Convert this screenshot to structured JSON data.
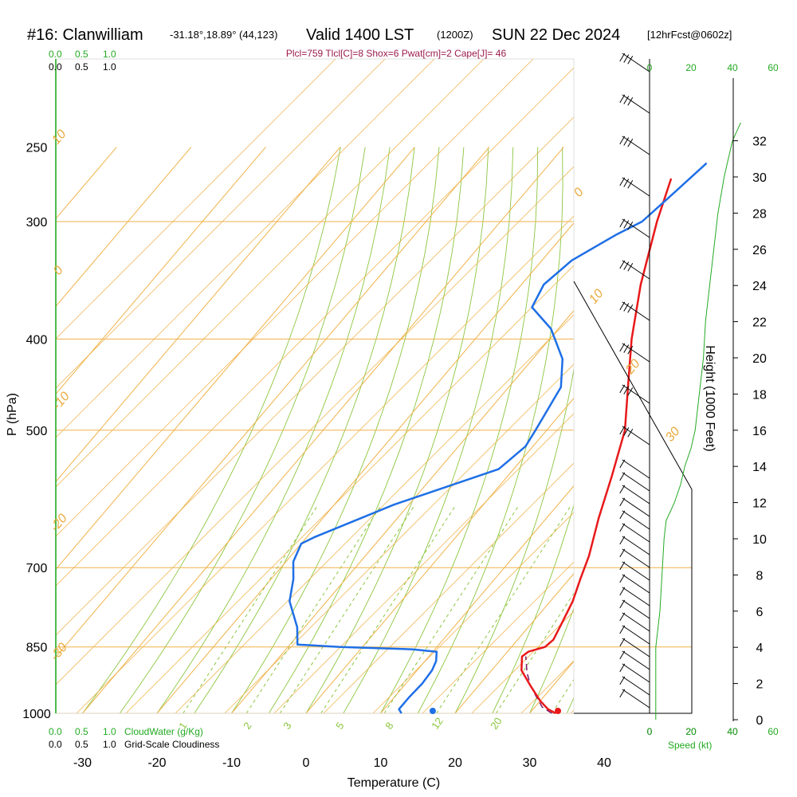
{
  "header": {
    "station": "#16: Clanwilliam",
    "coords": "-31.18°,18.89° (44,123)",
    "valid": "Valid 1400 LST",
    "utc": "(1200Z)",
    "date": "SUN 22 Dec 2024",
    "forecast": "[12hrFcst@0602z]",
    "indices": "Plcl=759 Tlcl[C]=8 Shox=6 Pwat[cm]=2 Cape[J]= 46"
  },
  "colors": {
    "temperature": "#e8191a",
    "dewpoint": "#1f6fe6",
    "isotherm": "#f0b24a",
    "dry_adiabat": "#8cc63f",
    "moist_adiabat": "#8cc63f",
    "mixing_ratio": "#8cc63f",
    "wind_speed": "#22aa22",
    "parcel": "#7a1a6a"
  },
  "scales": {
    "cloudwater_top": [
      "0.0",
      "0.5",
      "1.0"
    ],
    "cloudiness_top": [
      "0.0",
      "0.5",
      "1.0"
    ],
    "cloudwater_bottom": [
      "0.0",
      "0.5",
      "1.0"
    ],
    "cloudiness_bottom": [
      "0.0",
      "0.5",
      "1.0"
    ],
    "cloudwater_label": "CloudWater (g/Kg)",
    "cloudiness_label": "Grid-Scale Cloudiness"
  },
  "speed_axis": {
    "label": "Speed (kt)",
    "ticks_black": [
      "0",
      "20",
      "40"
    ],
    "ticks_green": [
      "0",
      "20",
      "40",
      "60"
    ],
    "ticks_top_green": [
      "0",
      "20",
      "40",
      "60"
    ]
  },
  "height_axis": {
    "label": "Height (1000 Feet)",
    "ticks": [
      "0",
      "2",
      "4",
      "6",
      "8",
      "10",
      "12",
      "14",
      "16",
      "18",
      "20",
      "22",
      "24",
      "26",
      "28",
      "30",
      "32"
    ]
  },
  "chart_data": {
    "type": "line",
    "xlabel": "Temperature (C)",
    "ylabel": "P (hPa)",
    "x_ticks": [
      -30,
      -20,
      -10,
      0,
      10,
      20,
      30,
      40
    ],
    "p_ticks": [
      1000,
      850,
      700,
      500,
      400,
      300,
      250
    ],
    "isotherm_labels": [
      "10",
      "0",
      "-10",
      "-20",
      "-30",
      "0",
      "10",
      "20",
      "30"
    ],
    "mixing_ratio_labels": [
      "1",
      "2",
      "3",
      "5",
      "8",
      "12",
      "20"
    ],
    "series": [
      {
        "name": "Temperature",
        "points": [
          [
            33.5,
            1000
          ],
          [
            32,
            990
          ],
          [
            30,
            970
          ],
          [
            27,
            935
          ],
          [
            24,
            900
          ],
          [
            22.5,
            870
          ],
          [
            22.8,
            860
          ],
          [
            24.5,
            850
          ],
          [
            24.8,
            835
          ],
          [
            24,
            800
          ],
          [
            23,
            760
          ],
          [
            21.5,
            720
          ],
          [
            20,
            680
          ],
          [
            17,
            620
          ],
          [
            14,
            560
          ],
          [
            10.5,
            500
          ],
          [
            6,
            450
          ],
          [
            1,
            400
          ],
          [
            -4,
            350
          ],
          [
            -9,
            300
          ],
          [
            -12,
            270
          ]
        ]
      },
      {
        "name": "Dewpoint",
        "points": [
          [
            12.8,
            1000
          ],
          [
            12,
            990
          ],
          [
            12,
            960
          ],
          [
            12.2,
            930
          ],
          [
            12,
            900
          ],
          [
            11.5,
            880
          ],
          [
            10.5,
            860
          ],
          [
            7,
            855
          ],
          [
            -3,
            850
          ],
          [
            -9,
            845
          ],
          [
            -11,
            810
          ],
          [
            -15,
            760
          ],
          [
            -17,
            720
          ],
          [
            -19,
            690
          ],
          [
            -20,
            660
          ],
          [
            -19,
            650
          ],
          [
            -12,
            600
          ],
          [
            -2,
            550
          ],
          [
            -1,
            520
          ],
          [
            -1.5,
            500
          ],
          [
            -3,
            450
          ],
          [
            -6,
            420
          ],
          [
            -11,
            390
          ],
          [
            -16,
            370
          ],
          [
            -17,
            350
          ],
          [
            -16,
            330
          ],
          [
            -13,
            310
          ],
          [
            -11,
            300
          ],
          [
            -10,
            280
          ],
          [
            -9,
            260
          ]
        ]
      },
      {
        "name": "Parcel",
        "points": [
          [
            33,
            1000
          ],
          [
            31,
            985
          ],
          [
            29,
            960
          ],
          [
            27,
            935
          ],
          [
            25,
            905
          ],
          [
            23,
            870
          ]
        ]
      }
    ],
    "surface_temperature": 33.8,
    "surface_dewpoint": 17.0,
    "height_profile": [
      [
        0,
        3
      ],
      [
        2,
        3
      ],
      [
        4,
        3
      ],
      [
        5,
        4
      ],
      [
        6,
        5
      ],
      [
        8,
        6
      ],
      [
        10,
        7
      ],
      [
        11,
        8
      ],
      [
        12,
        12
      ],
      [
        13,
        15
      ],
      [
        14,
        17
      ],
      [
        15,
        20
      ],
      [
        16,
        22
      ],
      [
        17,
        23
      ],
      [
        18,
        24
      ],
      [
        19,
        25
      ],
      [
        20,
        26
      ],
      [
        22,
        27
      ],
      [
        24,
        29
      ],
      [
        26,
        31
      ],
      [
        28,
        33
      ],
      [
        30,
        36
      ],
      [
        32,
        40
      ],
      [
        33,
        44
      ]
    ]
  }
}
